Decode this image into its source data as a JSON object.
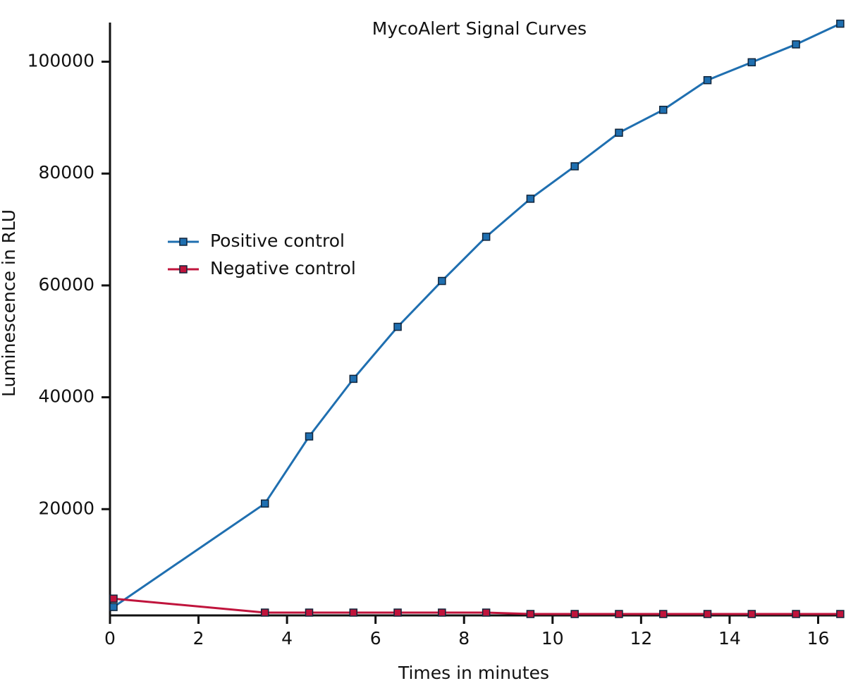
{
  "chart_data": {
    "type": "line",
    "title": "MycoAlert Signal Curves",
    "x_label": "Times in minutes",
    "y_label": "Luminescence in RLU",
    "x": [
      0.08,
      3.5,
      4.5,
      5.5,
      6.5,
      7.5,
      8.5,
      9.5,
      10.5,
      11.5,
      12.5,
      13.5,
      14.5,
      15.5,
      16.5
    ],
    "series": [
      {
        "name": "Positive control",
        "color": "#1f6fb0",
        "values": [
          2500,
          21000,
          33000,
          43300,
          52600,
          60800,
          68700,
          75500,
          81300,
          87300,
          91400,
          96700,
          99900,
          103100,
          106800
        ]
      },
      {
        "name": "Negative control",
        "color": "#c0143c",
        "values": [
          4000,
          1500,
          1500,
          1500,
          1500,
          1500,
          1500,
          1250,
          1250,
          1250,
          1250,
          1250,
          1250,
          1250,
          1250
        ]
      }
    ],
    "xlim": [
      0,
      16.55
    ],
    "xticks": [
      0,
      2,
      4,
      6,
      8,
      10,
      12,
      14,
      16
    ],
    "ylim": [
      1000,
      107000
    ],
    "yticks": [
      20000,
      40000,
      60000,
      80000,
      100000
    ],
    "grid": false
  }
}
